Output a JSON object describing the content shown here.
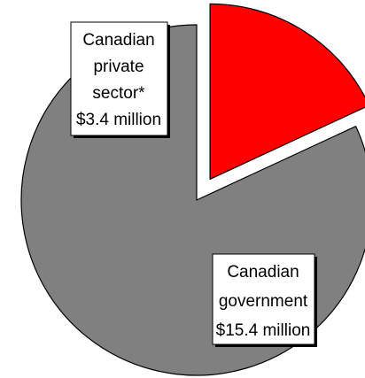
{
  "chart_data": {
    "type": "pie",
    "title": "",
    "categories": [
      "Canadian private sector*",
      "Canadian government"
    ],
    "values": [
      3.4,
      15.4
    ],
    "unit": "million",
    "colors": [
      "#ff0000",
      "#808080"
    ],
    "exploded": [
      true,
      false
    ],
    "labels": [
      {
        "lines": [
          "Canadian",
          "private",
          "sector*",
          "$3.4 million"
        ]
      },
      {
        "lines": [
          "Canadian",
          "government",
          "$15.4 million"
        ]
      }
    ]
  }
}
